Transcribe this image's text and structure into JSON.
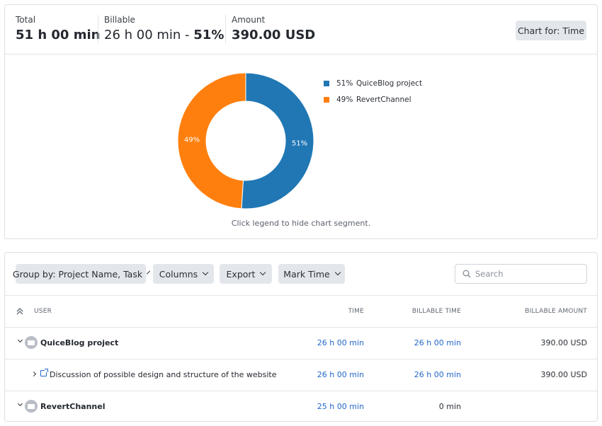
{
  "summary": {
    "total_label": "Total",
    "total_value": "51 h 00 min",
    "billable_label": "Billable",
    "billable_value": "26 h 00 min - ",
    "billable_pct": "51%",
    "amount_label": "Amount",
    "amount_value": "390.00 USD",
    "chart_for_button": "Chart for: Time"
  },
  "chart_data": {
    "type": "pie",
    "style": "donut",
    "categories": [
      "QuiceBlog project",
      "RevertChannel"
    ],
    "values": [
      51,
      49
    ],
    "labels": [
      "51%",
      "49%"
    ],
    "colors": [
      "#2077b4",
      "#ff7f0e"
    ],
    "legend_placement": "right"
  },
  "chart_hint": "Click legend to hide chart segment.",
  "toolbar": {
    "group_by": "Group by: Project Name, Task",
    "columns": "Columns",
    "export": "Export",
    "mark_time": "Mark Time",
    "search_placeholder": "Search"
  },
  "table": {
    "headers": [
      "USER",
      "TIME",
      "BILLABLE TIME",
      "BILLABLE AMOUNT"
    ],
    "rows": [
      {
        "name": "QuiceBlog project",
        "time": "26 h 00 min",
        "billable_time": "26 h 00 min",
        "amount": "390.00 USD"
      },
      {
        "name": "Discussion of possible design and structure of the website",
        "time": "26 h 00 min",
        "billable_time": "26 h 00 min",
        "amount": "390.00 USD"
      },
      {
        "name": "RevertChannel",
        "time": "25 h 00 min",
        "billable_time": "0 min",
        "amount": ""
      }
    ]
  }
}
